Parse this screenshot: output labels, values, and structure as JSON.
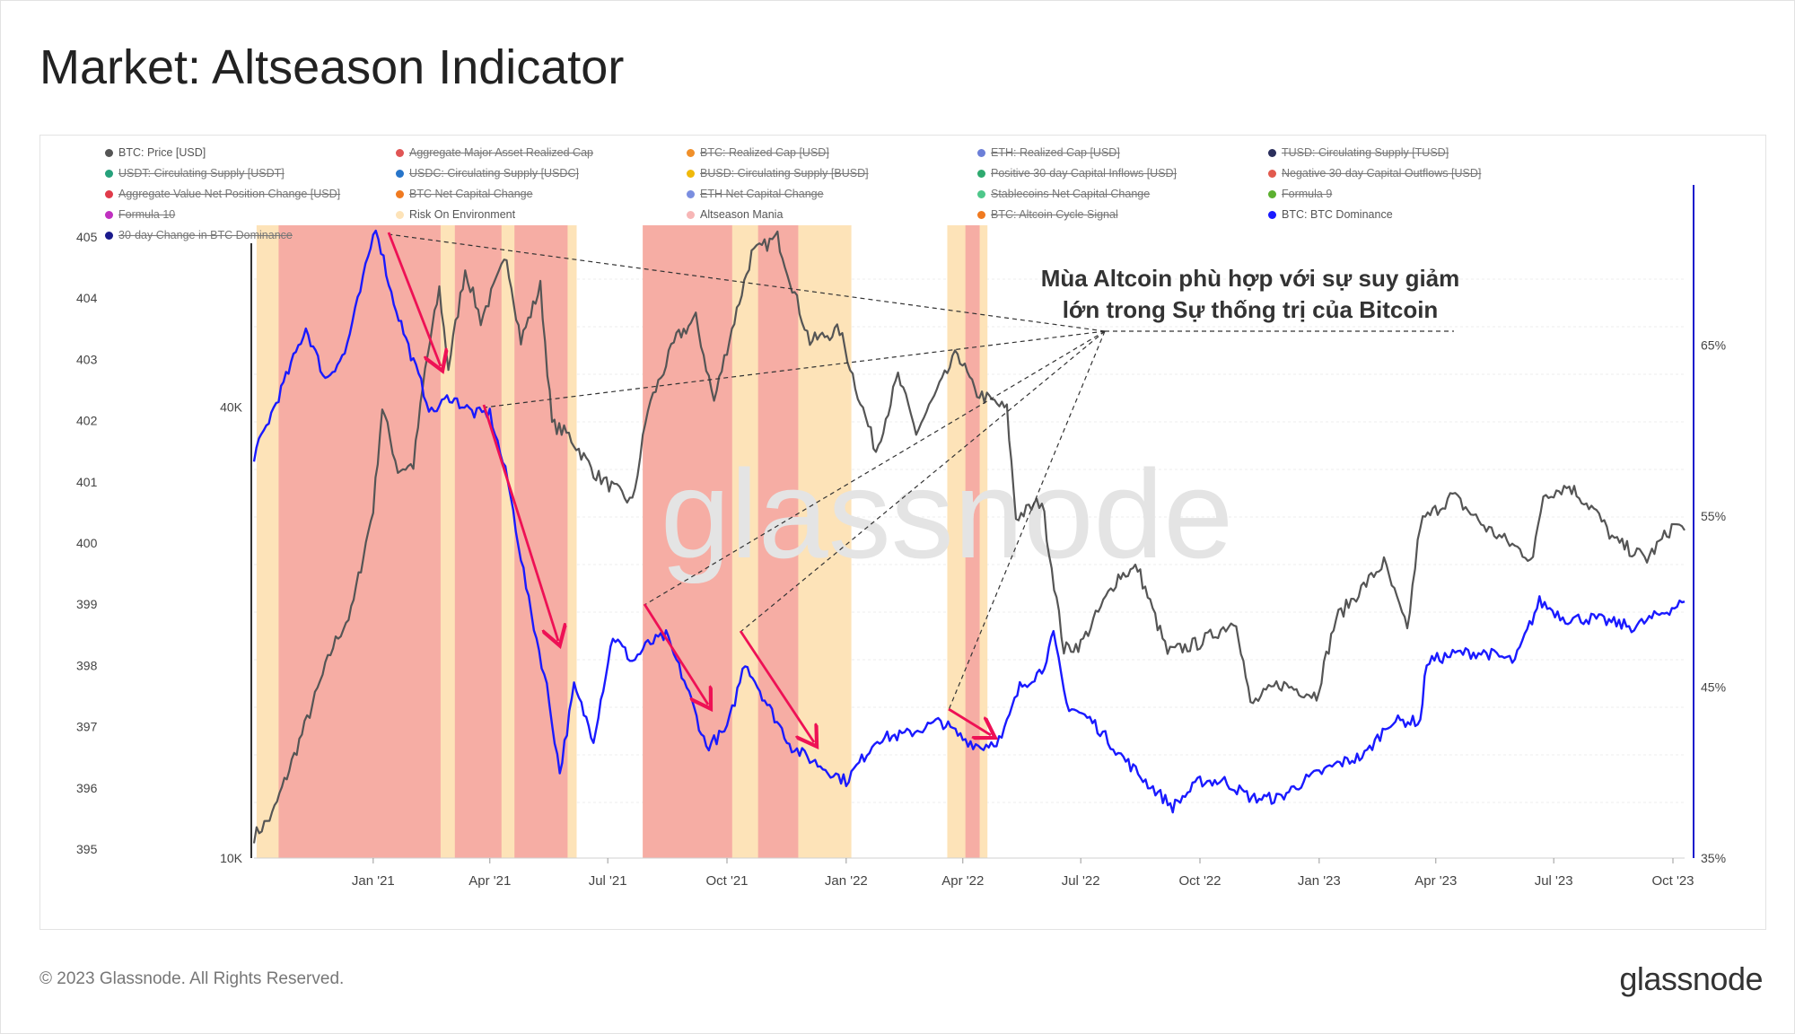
{
  "page_title": "Market: Altseason Indicator",
  "footer_text": "© 2023 Glassnode. All Rights Reserved.",
  "brand": "glassnode",
  "watermark": "glassnode",
  "legend": [
    {
      "label": "BTC: Price [USD]",
      "color": "#555555",
      "active": true
    },
    {
      "label": "Aggregate Major Asset Realized Cap",
      "color": "#e05555",
      "active": false
    },
    {
      "label": "BTC: Realized Cap [USD]",
      "color": "#f0902a",
      "active": false
    },
    {
      "label": "ETH: Realized Cap [USD]",
      "color": "#6c7fd8",
      "active": false
    },
    {
      "label": "TUSD: Circulating Supply [TUSD]",
      "color": "#2b2f5c",
      "active": false
    },
    {
      "label": "USDT: Circulating Supply [USDT]",
      "color": "#26a17b",
      "active": false
    },
    {
      "label": "USDC: Circulating Supply [USDC]",
      "color": "#2775ca",
      "active": false
    },
    {
      "label": "BUSD: Circulating Supply [BUSD]",
      "color": "#f0b90b",
      "active": false
    },
    {
      "label": "Positive 30-day Capital Inflows [USD]",
      "color": "#2eaa6f",
      "active": false
    },
    {
      "label": "Negative 30-day Capital Outflows [USD]",
      "color": "#e25a4e",
      "active": false
    },
    {
      "label": "Aggregate Value Net Position Change [USD]",
      "color": "#e03a4a",
      "active": false
    },
    {
      "label": "BTC Net Capital Change",
      "color": "#f07a20",
      "active": false
    },
    {
      "label": "ETH Net Capital Change",
      "color": "#7a8ee0",
      "active": false
    },
    {
      "label": "Stablecoins Net Capital Change",
      "color": "#4ec78a",
      "active": false
    },
    {
      "label": "Formula 9",
      "color": "#5cb030",
      "active": false
    },
    {
      "label": "Formula 10",
      "color": "#c030c0",
      "active": false
    },
    {
      "label": "Risk On Environment",
      "color": "#fde3b8",
      "active": true
    },
    {
      "label": "Altseason Mania",
      "color": "#f7b6b6",
      "active": true
    },
    {
      "label": "BTC: Altcoin Cycle Signal",
      "color": "#f07a20",
      "active": false
    },
    {
      "label": "BTC: BTC Dominance",
      "color": "#1a1aff",
      "active": true
    },
    {
      "label": "30-day Change in BTC Dominance",
      "color": "#1a1a8c",
      "active": false
    }
  ],
  "annotation": {
    "line1": "Mùa Altcoin phù hợp với sự suy giảm",
    "line2": "lớn trong Sự thống trị của Bitcoin"
  },
  "chart_data": {
    "type": "line",
    "x_ticks": [
      "Jan '21",
      "Apr '21",
      "Jul '21",
      "Oct '21",
      "Jan '22",
      "Apr '22",
      "Jul '22",
      "Oct '22",
      "Jan '23",
      "Apr '23",
      "Jul '23",
      "Oct '23"
    ],
    "left_axis_ticks": [
      "405",
      "404",
      "403",
      "402",
      "401",
      "400",
      "399",
      "398",
      "397",
      "396",
      "395"
    ],
    "price_axis_ticks": [
      "40K",
      "10K"
    ],
    "right_axis_ticks": [
      "65%",
      "55%",
      "45%",
      "35%"
    ],
    "x_range": [
      "2020-10-01",
      "2023-10-10"
    ],
    "price_log_scale": true,
    "price_range": [
      10000,
      70000
    ],
    "dominance_range": [
      35,
      72
    ],
    "series": [
      {
        "name": "BTC: Price [USD]",
        "color": "#555555",
        "points": [
          [
            "2020-10-01",
            10700
          ],
          [
            "2020-10-15",
            11400
          ],
          [
            "2020-11-01",
            13700
          ],
          [
            "2020-11-15",
            16000
          ],
          [
            "2020-12-01",
            19200
          ],
          [
            "2020-12-15",
            21300
          ],
          [
            "2021-01-01",
            29300
          ],
          [
            "2021-01-08",
            40000
          ],
          [
            "2021-01-20",
            33000
          ],
          [
            "2021-02-01",
            33500
          ],
          [
            "2021-02-10",
            44800
          ],
          [
            "2021-02-21",
            57500
          ],
          [
            "2021-02-28",
            45200
          ],
          [
            "2021-03-13",
            61200
          ],
          [
            "2021-03-25",
            52300
          ],
          [
            "2021-04-14",
            63500
          ],
          [
            "2021-04-25",
            49100
          ],
          [
            "2021-05-10",
            58000
          ],
          [
            "2021-05-19",
            38000
          ],
          [
            "2021-06-01",
            36700
          ],
          [
            "2021-06-22",
            32500
          ],
          [
            "2021-07-20",
            29800
          ],
          [
            "2021-08-01",
            39800
          ],
          [
            "2021-08-23",
            49500
          ],
          [
            "2021-09-07",
            52500
          ],
          [
            "2021-09-21",
            40700
          ],
          [
            "2021-10-01",
            48000
          ],
          [
            "2021-10-20",
            64000
          ],
          [
            "2021-11-09",
            67500
          ],
          [
            "2021-11-26",
            54000
          ],
          [
            "2021-12-04",
            49000
          ],
          [
            "2021-12-27",
            50700
          ],
          [
            "2022-01-10",
            41800
          ],
          [
            "2022-01-24",
            35000
          ],
          [
            "2022-02-10",
            44000
          ],
          [
            "2022-02-24",
            37000
          ],
          [
            "2022-03-28",
            47400
          ],
          [
            "2022-04-10",
            42000
          ],
          [
            "2022-05-05",
            39700
          ],
          [
            "2022-05-12",
            28500
          ],
          [
            "2022-06-01",
            30000
          ],
          [
            "2022-06-18",
            19000
          ],
          [
            "2022-07-01",
            19300
          ],
          [
            "2022-07-30",
            23800
          ],
          [
            "2022-08-14",
            24400
          ],
          [
            "2022-09-06",
            18800
          ],
          [
            "2022-10-01",
            19400
          ],
          [
            "2022-10-29",
            20800
          ],
          [
            "2022-11-09",
            16000
          ],
          [
            "2022-12-01",
            17100
          ],
          [
            "2022-12-30",
            16500
          ],
          [
            "2023-01-14",
            20900
          ],
          [
            "2023-02-20",
            24800
          ],
          [
            "2023-03-10",
            20100
          ],
          [
            "2023-03-20",
            28000
          ],
          [
            "2023-04-14",
            30500
          ],
          [
            "2023-05-10",
            27600
          ],
          [
            "2023-06-15",
            25100
          ],
          [
            "2023-06-23",
            30600
          ],
          [
            "2023-07-13",
            31400
          ],
          [
            "2023-08-01",
            29200
          ],
          [
            "2023-08-17",
            26500
          ],
          [
            "2023-09-11",
            25100
          ],
          [
            "2023-10-02",
            27900
          ],
          [
            "2023-10-10",
            27400
          ]
        ]
      },
      {
        "name": "BTC: BTC Dominance",
        "color": "#1a1aff",
        "points": [
          [
            "2020-10-01",
            58.5
          ],
          [
            "2020-10-20",
            62
          ],
          [
            "2020-11-10",
            66
          ],
          [
            "2020-11-25",
            63
          ],
          [
            "2020-12-10",
            64.5
          ],
          [
            "2020-12-20",
            67.5
          ],
          [
            "2021-01-03",
            72
          ],
          [
            "2021-01-15",
            68
          ],
          [
            "2021-02-01",
            64
          ],
          [
            "2021-02-15",
            61
          ],
          [
            "2021-03-01",
            62
          ],
          [
            "2021-03-20",
            61
          ],
          [
            "2021-04-01",
            61
          ],
          [
            "2021-04-15",
            57
          ],
          [
            "2021-05-01",
            50
          ],
          [
            "2021-05-15",
            45
          ],
          [
            "2021-05-25",
            40
          ],
          [
            "2021-06-05",
            45
          ],
          [
            "2021-06-20",
            42
          ],
          [
            "2021-07-05",
            48
          ],
          [
            "2021-07-20",
            46.5
          ],
          [
            "2021-08-01",
            47.5
          ],
          [
            "2021-08-15",
            48
          ],
          [
            "2021-08-31",
            45
          ],
          [
            "2021-09-15",
            41.5
          ],
          [
            "2021-10-01",
            42.5
          ],
          [
            "2021-10-15",
            46.5
          ],
          [
            "2021-11-01",
            44
          ],
          [
            "2021-11-20",
            41.5
          ],
          [
            "2021-12-10",
            40.5
          ],
          [
            "2022-01-01",
            39.5
          ],
          [
            "2022-01-25",
            42
          ],
          [
            "2022-02-15",
            42.2
          ],
          [
            "2022-03-15",
            43
          ],
          [
            "2022-04-01",
            42
          ],
          [
            "2022-04-15",
            41.5
          ],
          [
            "2022-05-01",
            42
          ],
          [
            "2022-05-15",
            45
          ],
          [
            "2022-06-01",
            46
          ],
          [
            "2022-06-10",
            48
          ],
          [
            "2022-06-20",
            44
          ],
          [
            "2022-07-10",
            43
          ],
          [
            "2022-08-01",
            41
          ],
          [
            "2022-08-20",
            39.5
          ],
          [
            "2022-09-10",
            38
          ],
          [
            "2022-10-01",
            39.5
          ],
          [
            "2022-10-20",
            39.5
          ],
          [
            "2022-11-10",
            38.5
          ],
          [
            "2022-12-01",
            38.5
          ],
          [
            "2022-12-20",
            39.5
          ],
          [
            "2023-01-15",
            40.5
          ],
          [
            "2023-02-05",
            41
          ],
          [
            "2023-02-25",
            43
          ],
          [
            "2023-03-20",
            43
          ],
          [
            "2023-03-25",
            46.5
          ],
          [
            "2023-04-20",
            47
          ],
          [
            "2023-05-10",
            47
          ],
          [
            "2023-06-01",
            46.5
          ],
          [
            "2023-06-20",
            50
          ],
          [
            "2023-07-10",
            49
          ],
          [
            "2023-08-01",
            49
          ],
          [
            "2023-09-01",
            48.5
          ],
          [
            "2023-10-10",
            50
          ]
        ]
      }
    ],
    "shaded_periods": [
      {
        "type": "Risk On Environment",
        "start": "2020-10-03",
        "end": "2021-06-07"
      },
      {
        "type": "Risk On Environment",
        "start": "2021-07-28",
        "end": "2022-01-05"
      },
      {
        "type": "Risk On Environment",
        "start": "2022-03-20",
        "end": "2022-04-20"
      },
      {
        "type": "Altseason Mania",
        "start": "2020-10-20",
        "end": "2021-02-22"
      },
      {
        "type": "Altseason Mania",
        "start": "2021-03-05",
        "end": "2021-04-10"
      },
      {
        "type": "Altseason Mania",
        "start": "2021-04-20",
        "end": "2021-05-31"
      },
      {
        "type": "Altseason Mania",
        "start": "2021-07-28",
        "end": "2021-10-05"
      },
      {
        "type": "Altseason Mania",
        "start": "2021-10-25",
        "end": "2021-11-25"
      },
      {
        "type": "Altseason Mania",
        "start": "2022-04-03",
        "end": "2022-04-14"
      }
    ]
  }
}
